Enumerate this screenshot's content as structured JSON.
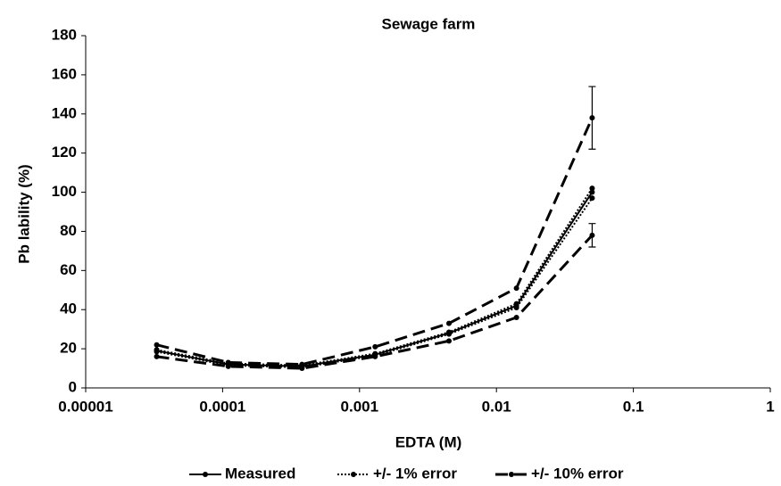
{
  "chart_data": {
    "type": "line",
    "title": "Sewage farm",
    "x_label": "EDTA (M)",
    "y_label": "Pb lability (%)",
    "x_log": true,
    "xlim": [
      1e-05,
      1
    ],
    "xticks": [
      1e-05,
      0.0001,
      0.001,
      0.01,
      0.1,
      1
    ],
    "ylim": [
      0,
      180
    ],
    "yticks": [
      0,
      20,
      40,
      60,
      80,
      100,
      120,
      140,
      160,
      180
    ],
    "x": [
      3.3e-05,
      0.00011,
      0.00038,
      0.0013,
      0.0045,
      0.014,
      0.05
    ],
    "series": [
      {
        "name": "Measured",
        "color": "#000000",
        "style": "solid",
        "values": [
          19,
          12,
          11,
          17,
          28,
          42,
          100
        ]
      },
      {
        "name": "+/- 1% error",
        "color": "#000000",
        "style": "dotted",
        "upper": [
          19.5,
          12.5,
          11.5,
          17.5,
          28.5,
          43,
          102
        ],
        "lower": [
          18.5,
          11.5,
          10.5,
          16.5,
          27.5,
          41,
          97
        ]
      },
      {
        "name": "+/- 10% error",
        "color": "#000000",
        "style": "dashed",
        "upper": [
          22,
          13,
          12,
          21,
          33,
          51,
          138
        ],
        "lower": [
          16,
          11,
          10,
          16,
          24,
          36,
          78
        ],
        "upper_error": [
          null,
          null,
          null,
          null,
          null,
          null,
          16
        ],
        "lower_error": [
          null,
          null,
          null,
          null,
          null,
          null,
          6
        ]
      }
    ]
  }
}
